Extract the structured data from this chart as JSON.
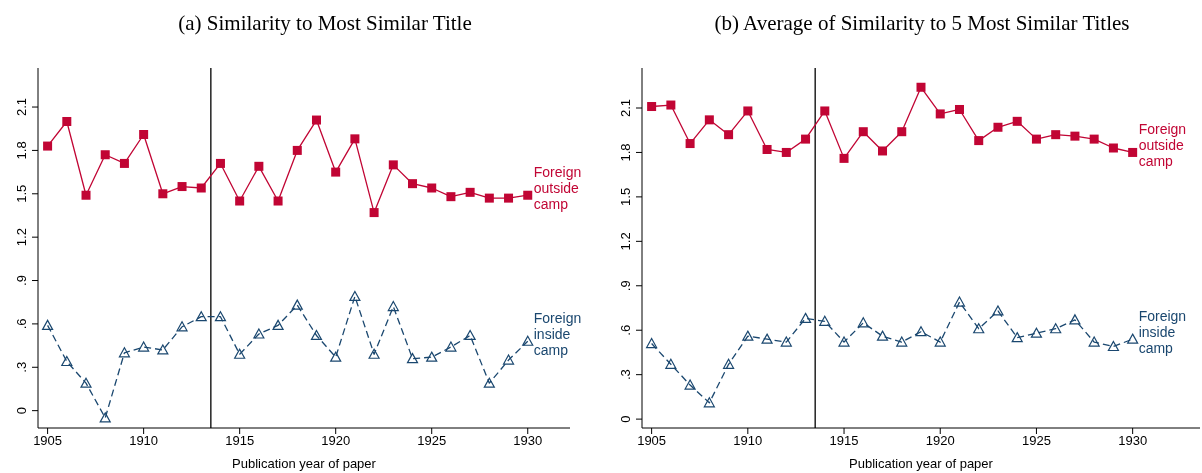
{
  "chart_data": [
    {
      "type": "line",
      "title": "(a) Similarity to Most Similar Title",
      "xlabel": "Publication year of paper",
      "x": [
        1905,
        1906,
        1907,
        1908,
        1909,
        1910,
        1911,
        1912,
        1913,
        1914,
        1915,
        1916,
        1917,
        1918,
        1919,
        1920,
        1921,
        1922,
        1923,
        1924,
        1925,
        1926,
        1927,
        1928,
        1929,
        1930
      ],
      "series": [
        {
          "name": "Foreign outside camp",
          "color": "#c10534",
          "marker": "square",
          "line_style": "solid",
          "values": [
            1.83,
            2.0,
            1.49,
            1.77,
            1.71,
            1.91,
            1.5,
            1.55,
            1.54,
            1.71,
            1.45,
            1.69,
            1.45,
            1.8,
            2.01,
            1.65,
            1.88,
            1.37,
            1.7,
            1.57,
            1.54,
            1.48,
            1.51,
            1.47,
            1.47,
            1.49
          ]
        },
        {
          "name": "Foreign inside camp",
          "color": "#1a476f",
          "marker": "triangle",
          "line_style": "dashed",
          "values": [
            0.59,
            0.34,
            0.19,
            -0.05,
            0.4,
            0.44,
            0.42,
            0.58,
            0.65,
            0.65,
            0.39,
            0.53,
            0.59,
            0.73,
            0.52,
            0.37,
            0.79,
            0.39,
            0.72,
            0.36,
            0.37,
            0.44,
            0.52,
            0.19,
            0.35,
            0.48
          ]
        }
      ],
      "xlim": [
        1904.5,
        1932.2
      ],
      "xticks": [
        1905,
        1910,
        1915,
        1920,
        1925,
        1930
      ],
      "ylim": [
        -0.12,
        2.37
      ],
      "yticks": [
        0,
        {
          "value": 0.3,
          "label": ".3"
        },
        {
          "value": 0.6,
          "label": ".6"
        },
        {
          "value": 0.9,
          "label": ".9"
        },
        1.2,
        1.5,
        1.8,
        2.1
      ],
      "ref_lines": [
        {
          "axis": "x",
          "value": 1913.5,
          "color": "#000000"
        }
      ],
      "grid": false,
      "legend": false
    },
    {
      "type": "line",
      "title": "(b) Average of Similarity to 5 Most Similar Titles",
      "xlabel": "Publication year of paper",
      "x": [
        1905,
        1906,
        1907,
        1908,
        1909,
        1910,
        1911,
        1912,
        1913,
        1914,
        1915,
        1916,
        1917,
        1918,
        1919,
        1920,
        1921,
        1922,
        1923,
        1924,
        1925,
        1926,
        1927,
        1928,
        1929,
        1930
      ],
      "series": [
        {
          "name": "Foreign outside camp",
          "color": "#c10534",
          "marker": "square",
          "line_style": "solid",
          "values": [
            2.11,
            2.12,
            1.86,
            2.02,
            1.92,
            2.08,
            1.82,
            1.8,
            1.89,
            2.08,
            1.76,
            1.94,
            1.81,
            1.94,
            2.24,
            2.06,
            2.09,
            1.88,
            1.97,
            2.01,
            1.89,
            1.92,
            1.91,
            1.89,
            1.83,
            1.8
          ]
        },
        {
          "name": "Foreign inside camp",
          "color": "#1a476f",
          "marker": "triangle",
          "line_style": "dashed",
          "values": [
            0.51,
            0.37,
            0.23,
            0.11,
            0.37,
            0.56,
            0.54,
            0.52,
            0.68,
            0.66,
            0.52,
            0.65,
            0.56,
            0.52,
            0.59,
            0.52,
            0.79,
            0.61,
            0.73,
            0.55,
            0.58,
            0.61,
            0.67,
            0.52,
            0.49,
            0.54
          ]
        }
      ],
      "xlim": [
        1904.5,
        1933.5
      ],
      "xticks": [
        1905,
        1910,
        1915,
        1920,
        1925,
        1930
      ],
      "ylim": [
        -0.06,
        2.37
      ],
      "yticks": [
        0,
        {
          "value": 0.3,
          "label": ".3"
        },
        {
          "value": 0.6,
          "label": ".6"
        },
        {
          "value": 0.9,
          "label": ".9"
        },
        1.2,
        1.5,
        1.8,
        2.1
      ],
      "ref_lines": [
        {
          "axis": "x",
          "value": 1913.5,
          "color": "#000000"
        }
      ],
      "grid": false,
      "legend": false
    }
  ]
}
